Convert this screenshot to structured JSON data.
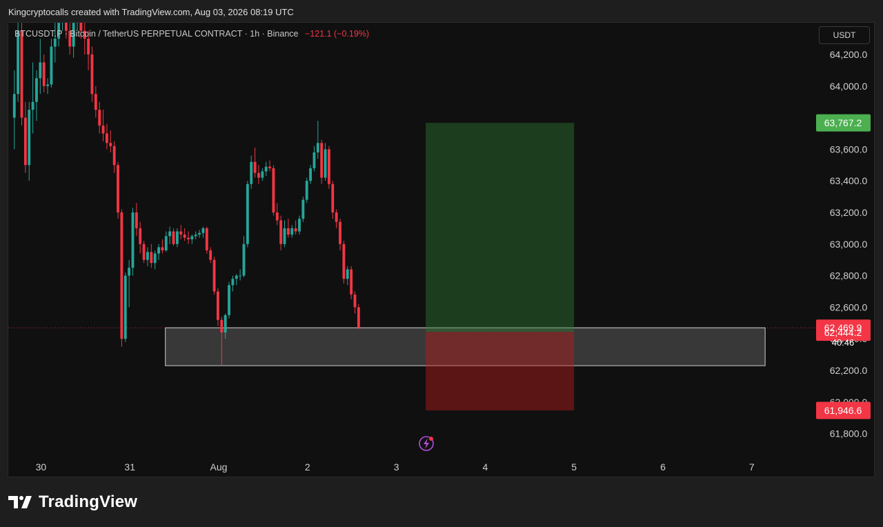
{
  "caption": "Kingcryptocalls created with TradingView.com, Aug 03, 2026 08:19 UTC",
  "header": {
    "symbol": "BTCUSDT.P · Bitcoin / TetherUS PERPETUAL CONTRACT · 1h · Binance",
    "change": "−121.1 (−0.19%)"
  },
  "currency": "USDT",
  "brand": "TradingView",
  "colors": {
    "up": "#26a69a",
    "down": "#f23645",
    "target_tag": "#4caf50",
    "stop_tag": "#f23645",
    "background": "#101010"
  },
  "chart_data": {
    "type": "candlestick",
    "title": "BTCUSDT.P · Bitcoin / TetherUS PERPETUAL CONTRACT · 1h · Binance",
    "y_ticks": [
      "64,200.0",
      "64,000.0",
      "63,800.0",
      "63,600.0",
      "63,400.0",
      "63,200.0",
      "63,000.0",
      "62,800.0",
      "62,600.0",
      "62,400.0",
      "62,200.0",
      "62,000.0",
      "61,800.0"
    ],
    "y_tick_values": [
      64200,
      64000,
      63800,
      63600,
      63400,
      63200,
      63000,
      62800,
      62600,
      62400,
      62200,
      62000,
      61800
    ],
    "ylim": [
      61600,
      64350
    ],
    "x_ticks": [
      "30",
      "31",
      "Aug",
      "2",
      "3",
      "4",
      "5",
      "6",
      "7"
    ],
    "x_tick_day": [
      -2,
      -1,
      0,
      1,
      2,
      3,
      4,
      5,
      6
    ],
    "bars_per_day": 24,
    "first_bar_day": -2.3,
    "current_price": "62,469.9",
    "current_price_value": 62469.9,
    "countdown": "40:46",
    "entry_price": "62,444.2",
    "entry_value": 62444.2,
    "target_price": "63,767.2",
    "target_value": 63767.2,
    "stop_price": "61,946.6",
    "stop_value": 61946.6,
    "position": {
      "start_day": 2.33,
      "end_day": 4.0
    },
    "zone": {
      "start_day": -0.6,
      "end_day": 6.15,
      "top": 62470,
      "bottom": 62230
    },
    "candles_ohlc": [
      [
        63800,
        64100,
        63600,
        63950
      ],
      [
        63950,
        64450,
        63900,
        64350
      ],
      [
        64350,
        64400,
        63750,
        63800
      ],
      [
        63800,
        63900,
        63450,
        63500
      ],
      [
        63500,
        63900,
        63400,
        63850
      ],
      [
        63850,
        64150,
        63700,
        63900
      ],
      [
        63900,
        64100,
        63780,
        64050
      ],
      [
        64050,
        64300,
        63950,
        64150
      ],
      [
        64150,
        64200,
        63960,
        64000
      ],
      [
        64000,
        64050,
        63950,
        64010
      ],
      [
        64010,
        64300,
        63990,
        64250
      ],
      [
        64250,
        64450,
        64150,
        64300
      ],
      [
        64300,
        64500,
        64250,
        64400
      ],
      [
        64400,
        64600,
        64350,
        64500
      ],
      [
        64500,
        64550,
        64300,
        64350
      ],
      [
        64350,
        64400,
        64200,
        64250
      ],
      [
        64250,
        64450,
        64180,
        64400
      ],
      [
        64400,
        64550,
        64350,
        64500
      ],
      [
        64500,
        64600,
        64300,
        64350
      ],
      [
        64350,
        64450,
        64200,
        64300
      ],
      [
        64300,
        64350,
        64100,
        64200
      ],
      [
        64200,
        64250,
        63900,
        63950
      ],
      [
        63950,
        64000,
        63800,
        63850
      ],
      [
        63850,
        63900,
        63700,
        63750
      ],
      [
        63750,
        63850,
        63650,
        63700
      ],
      [
        63700,
        63760,
        63600,
        63640
      ],
      [
        63640,
        63720,
        63580,
        63620
      ],
      [
        63620,
        63650,
        63450,
        63500
      ],
      [
        63500,
        63520,
        63160,
        63200
      ],
      [
        63200,
        63220,
        62350,
        62400
      ],
      [
        62400,
        62820,
        62380,
        62800
      ],
      [
        62800,
        62900,
        62600,
        62850
      ],
      [
        62850,
        63230,
        62800,
        63200
      ],
      [
        63200,
        63260,
        63050,
        63100
      ],
      [
        63100,
        63140,
        62940,
        63000
      ],
      [
        63000,
        63020,
        62880,
        62900
      ],
      [
        62900,
        62980,
        62860,
        62950
      ],
      [
        62950,
        63000,
        62850,
        62880
      ],
      [
        62880,
        62960,
        62840,
        62940
      ],
      [
        62940,
        63000,
        62900,
        62980
      ],
      [
        62980,
        63030,
        62940,
        62960
      ],
      [
        62960,
        63080,
        62950,
        63050
      ],
      [
        63050,
        63110,
        63000,
        63080
      ],
      [
        63080,
        63100,
        62990,
        63000
      ],
      [
        63000,
        63100,
        62980,
        63080
      ],
      [
        63080,
        63120,
        63030,
        63060
      ],
      [
        63060,
        63100,
        63020,
        63040
      ],
      [
        63040,
        63080,
        63000,
        63030
      ],
      [
        63030,
        63060,
        63000,
        63050
      ],
      [
        63050,
        63080,
        63030,
        63060
      ],
      [
        63060,
        63090,
        63040,
        63070
      ],
      [
        63070,
        63110,
        63040,
        63100
      ],
      [
        63100,
        63110,
        62940,
        62960
      ],
      [
        62960,
        62980,
        62880,
        62900
      ],
      [
        62900,
        62920,
        62680,
        62700
      ],
      [
        62700,
        62720,
        62480,
        62520
      ],
      [
        62520,
        62540,
        62230,
        62440
      ],
      [
        62440,
        62560,
        62400,
        62550
      ],
      [
        62550,
        62760,
        62530,
        62740
      ],
      [
        62740,
        62800,
        62700,
        62780
      ],
      [
        62780,
        62810,
        62740,
        62800
      ],
      [
        62800,
        62840,
        62770,
        62800
      ],
      [
        62800,
        63050,
        62790,
        63000
      ],
      [
        63000,
        63400,
        62980,
        63380
      ],
      [
        63380,
        63560,
        63350,
        63520
      ],
      [
        63520,
        63610,
        63420,
        63450
      ],
      [
        63450,
        63500,
        63380,
        63420
      ],
      [
        63420,
        63480,
        63400,
        63460
      ],
      [
        63460,
        63520,
        63430,
        63490
      ],
      [
        63490,
        63530,
        63460,
        63480
      ],
      [
        63480,
        63500,
        63180,
        63200
      ],
      [
        63200,
        63260,
        63120,
        63150
      ],
      [
        63150,
        63180,
        62960,
        63000
      ],
      [
        63000,
        63150,
        62980,
        63100
      ],
      [
        63100,
        63160,
        63040,
        63060
      ],
      [
        63060,
        63120,
        63040,
        63100
      ],
      [
        63100,
        63150,
        63060,
        63080
      ],
      [
        63080,
        63180,
        63060,
        63160
      ],
      [
        63160,
        63300,
        63140,
        63280
      ],
      [
        63280,
        63420,
        63260,
        63400
      ],
      [
        63400,
        63500,
        63380,
        63480
      ],
      [
        63480,
        63620,
        63460,
        63580
      ],
      [
        63580,
        63780,
        63540,
        63640
      ],
      [
        63640,
        63660,
        63380,
        63420
      ],
      [
        63420,
        63640,
        63400,
        63600
      ],
      [
        63600,
        63620,
        63350,
        63380
      ],
      [
        63380,
        63400,
        63160,
        63200
      ],
      [
        63200,
        63220,
        63100,
        63140
      ],
      [
        63140,
        63160,
        62960,
        63000
      ],
      [
        63000,
        63020,
        62750,
        62780
      ],
      [
        62780,
        62860,
        62740,
        62840
      ],
      [
        62840,
        62860,
        62650,
        62680
      ],
      [
        62680,
        62700,
        62560,
        62600
      ],
      [
        62600,
        62620,
        62460,
        62470
      ]
    ]
  }
}
